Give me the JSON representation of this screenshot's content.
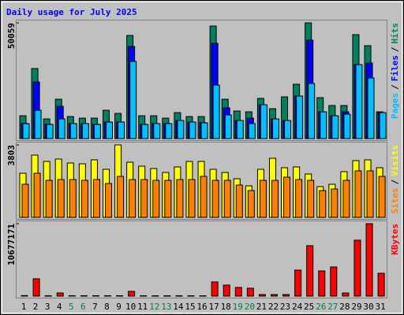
{
  "chart_data": {
    "type": "bar",
    "title": "Daily usage for July 2025",
    "categories": [
      "1",
      "2",
      "3",
      "4",
      "5",
      "6",
      "7",
      "8",
      "9",
      "10",
      "11",
      "12",
      "13",
      "14",
      "15",
      "16",
      "17",
      "18",
      "19",
      "20",
      "21",
      "22",
      "23",
      "24",
      "25",
      "26",
      "27",
      "28",
      "29",
      "30",
      "31"
    ],
    "category_color": "#000000",
    "highlight_categories": [
      "5",
      "6",
      "12",
      "13",
      "19",
      "20",
      "26",
      "27"
    ],
    "highlight_color": "#008040",
    "legend_separator": "/",
    "panels": [
      {
        "ylim": [
          0,
          50059
        ],
        "yticks": [
          50059
        ],
        "series": [
          {
            "name": "Hits",
            "color": "#00805c",
            "label_color": "#00805c",
            "values": [
              9875,
              30300,
              8510,
              17025,
              9530,
              8850,
              8850,
              12260,
              10900,
              44600,
              9875,
              9875,
              8850,
              11240,
              9530,
              9530,
              48690,
              17025,
              11920,
              11580,
              17370,
              12940,
              18050,
              23500,
              50059,
              17700,
              14300,
              14300,
              44950,
              40180,
              11580
            ]
          },
          {
            "name": "Files",
            "color": "#0000ff",
            "label_color": "#0000ff",
            "values": [
              6600,
              24500,
              6200,
              13960,
              6500,
              6500,
              6200,
              7200,
              7200,
              39840,
              6200,
              6500,
              6500,
              7830,
              7200,
              6900,
              41200,
              13280,
              7830,
              8850,
              14640,
              8510,
              7830,
              18390,
              42560,
              11580,
              9875,
              11580,
              32010,
              32690,
              11240
            ]
          },
          {
            "name": "Pages",
            "color": "#00c0ff",
            "label_color": "#00c0ff",
            "values": [
              6470,
              12260,
              6130,
              8510,
              6470,
              6470,
              6130,
              7150,
              7150,
              33370,
              6130,
              6470,
              6470,
              7830,
              7150,
              6810,
              23150,
              10215,
              7830,
              6470,
              14640,
              8510,
              7830,
              18390,
              23840,
              11580,
              9875,
              10560,
              32010,
              26220,
              11240
            ]
          }
        ]
      },
      {
        "ylim": [
          0,
          3803
        ],
        "yticks": [
          3803
        ],
        "series": [
          {
            "name": "Visits",
            "color": "#ffff00",
            "label_color": "#ffff00",
            "values": [
              2315,
              3266,
              2935,
              3059,
              2852,
              2811,
              3018,
              2522,
              3803,
              2894,
              2687,
              2563,
              2356,
              2646,
              2935,
              2935,
              2522,
              2356,
              2026,
              1654,
              2522,
              3101,
              2604,
              2646,
              2274,
              1612,
              1736,
              2398,
              2977,
              3018,
              2604
            ]
          },
          {
            "name": "Sites",
            "color": "#ff8000",
            "label_color": "#ff8000",
            "values": [
              1736,
              2315,
              1943,
              1984,
              1984,
              1943,
              1984,
              1778,
              2150,
              1984,
              1984,
              1943,
              1943,
              1984,
              1984,
              2150,
              1943,
              1943,
              1695,
              1406,
              1943,
              1943,
              2108,
              1984,
              1943,
              1406,
              1488,
              1943,
              2439,
              2439,
              2150
            ]
          }
        ]
      },
      {
        "ylim": [
          0,
          10677171
        ],
        "yticks": [
          10677171
        ],
        "series": [
          {
            "name": "KBytes",
            "color": "#ff0000",
            "label_color": "#ff0000",
            "values": [
              80000,
              2553000,
              50000,
              464000,
              60000,
              60000,
              60000,
              60000,
              60000,
              696000,
              50000,
              50000,
              50000,
              50000,
              50000,
              50000,
              2089000,
              1625000,
              1277000,
              1160000,
              232000,
              232000,
              232000,
              3830000,
              7428000,
              3714000,
              4294000,
              464000,
              8240000,
              10677171,
              3366000
            ]
          }
        ]
      }
    ]
  }
}
